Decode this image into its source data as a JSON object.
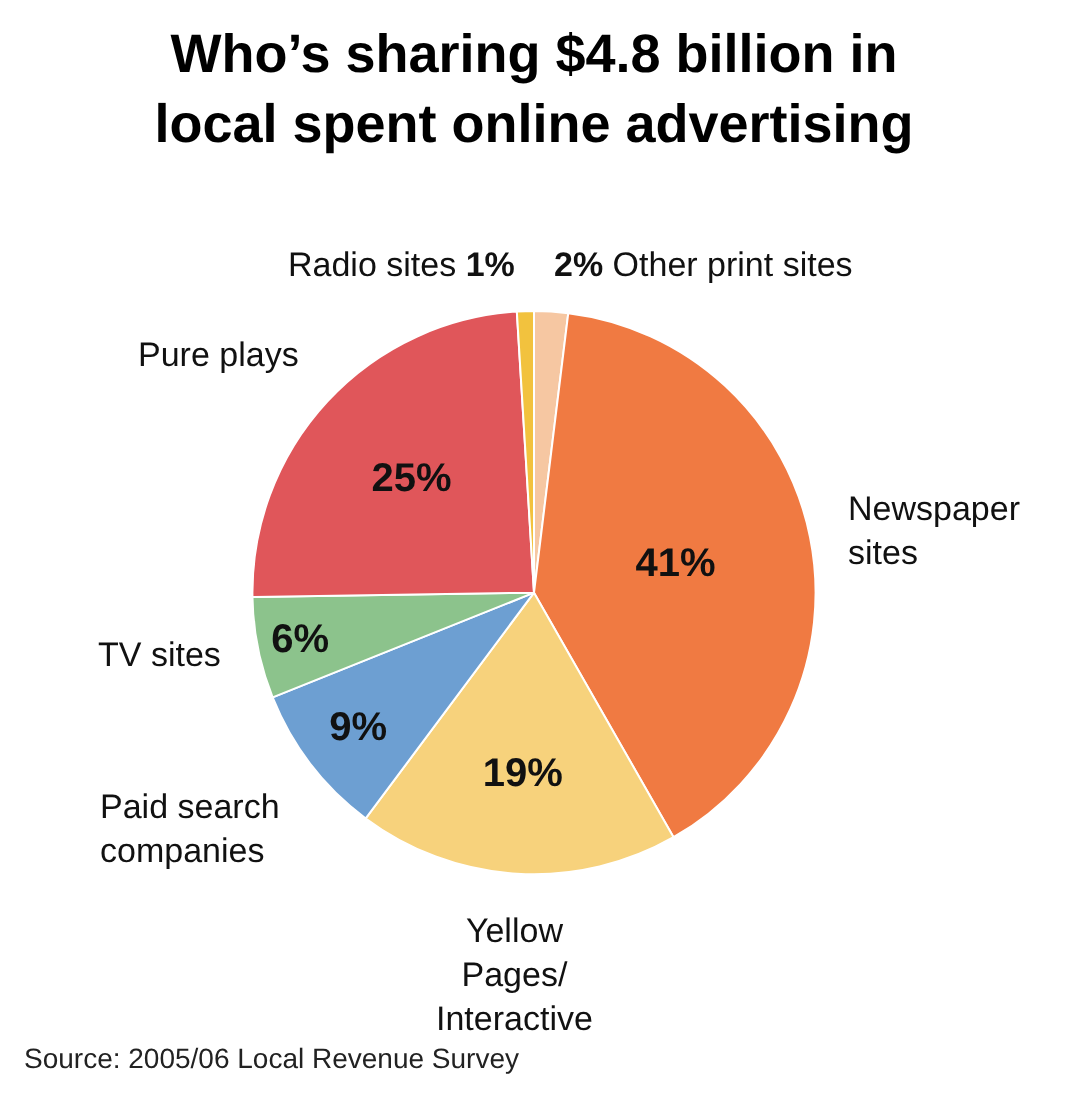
{
  "chart_data": {
    "type": "pie",
    "title": "Who’s sharing $4.8 billion in local spent online advertising",
    "categories": [
      "Other print sites",
      "Newspaper sites",
      "Yellow Pages/ Interactive",
      "Paid search companies",
      "TV sites",
      "Pure plays",
      "Radio sites"
    ],
    "values": [
      2,
      41,
      19,
      9,
      6,
      25,
      1
    ],
    "value_labels": [
      "2%",
      "41%",
      "19%",
      "9%",
      "6%",
      "25%",
      "1%"
    ],
    "colors": [
      "#f6c7a2",
      "#f07a42",
      "#f7d27c",
      "#6d9fd2",
      "#8cc38c",
      "#e0565a",
      "#f2c23e"
    ],
    "annotations": [
      "Source: 2005/06 Local Revenue Survey"
    ]
  }
}
